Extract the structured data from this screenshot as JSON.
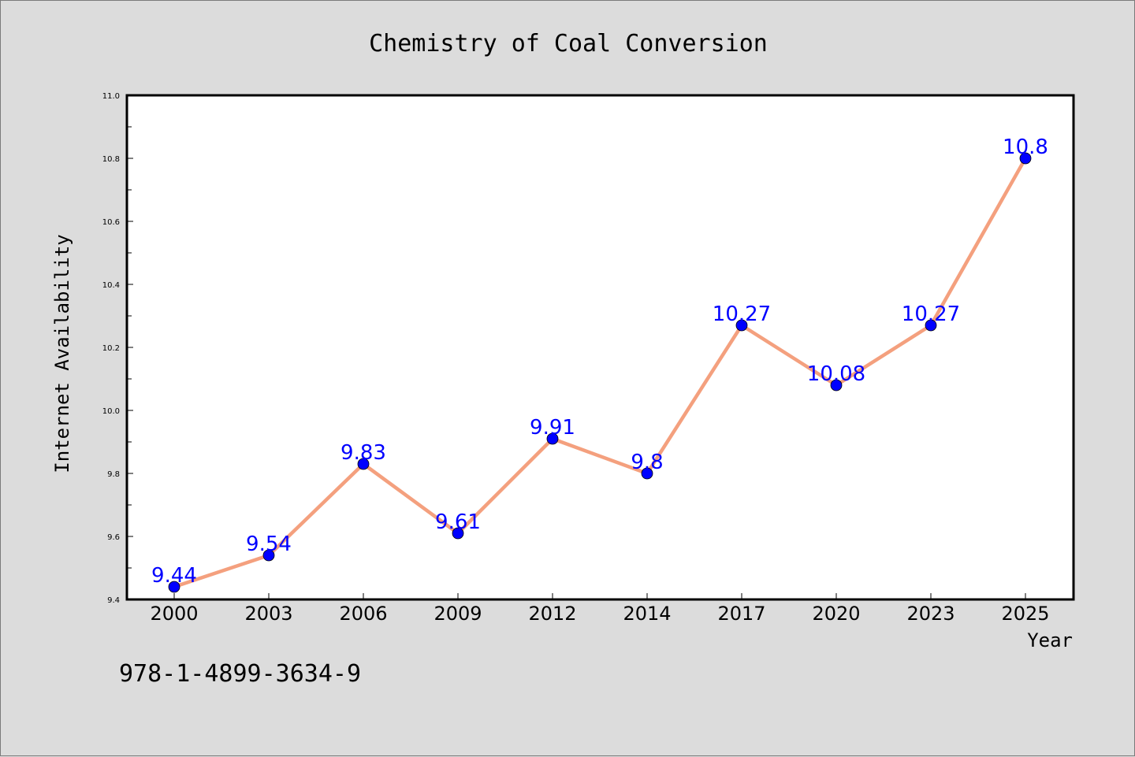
{
  "chart_data": {
    "type": "line",
    "title": "Chemistry of Coal Conversion",
    "xlabel": "Year",
    "ylabel": "Internet Availability",
    "categories": [
      "2000",
      "2003",
      "2006",
      "2009",
      "2012",
      "2014",
      "2017",
      "2020",
      "2023",
      "2025"
    ],
    "series": [
      {
        "values": [
          9.44,
          9.54,
          9.83,
          9.61,
          9.91,
          9.8,
          10.27,
          10.08,
          10.27,
          10.8
        ],
        "data_labels": [
          "9.44",
          "9.54",
          "9.83",
          "9.61",
          "9.91",
          "9.8",
          "10.27",
          "10.08",
          "10.27",
          "10.8"
        ],
        "line_color": "#f4a07e",
        "marker_color": "#0000ff",
        "label_color": "#0000ff"
      }
    ],
    "ylim": [
      9.4,
      11.0
    ],
    "yticks": [
      "9.4",
      "9.6",
      "9.8",
      "10.0",
      "10.2",
      "10.4",
      "10.6",
      "10.8",
      "11.0"
    ],
    "grid": false,
    "legend": "none"
  },
  "footer_text": "978-1-4899-3634-9",
  "colors": {
    "background": "#dcdcdc",
    "plot_background": "#ffffff",
    "axis": "#000000"
  }
}
